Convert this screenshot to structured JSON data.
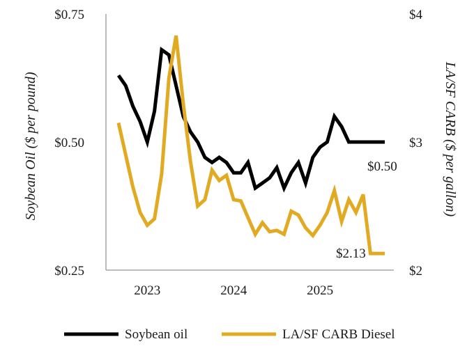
{
  "chart_data": {
    "type": "line",
    "title": "",
    "xlabel": "",
    "ylabel_left": "Soybean Oil ($ per pound)",
    "ylabel_right": "LA/SF CARB ($ per gallon)",
    "ylim_left": [
      0.25,
      0.75
    ],
    "ylim_right": [
      2,
      4
    ],
    "left_ticks": [
      {
        "value": 0.75,
        "label": "$0.75"
      },
      {
        "value": 0.5,
        "label": "$0.50"
      },
      {
        "value": 0.25,
        "label": "$0.25"
      }
    ],
    "right_ticks": [
      {
        "value": 4,
        "label": "$4"
      },
      {
        "value": 3,
        "label": "$3"
      },
      {
        "value": 2,
        "label": "$2"
      }
    ],
    "x_ticks": [
      {
        "index": 4,
        "label": "2023"
      },
      {
        "index": 16,
        "label": "2024"
      },
      {
        "index": 28,
        "label": "2025"
      }
    ],
    "x_count": 38,
    "series": [
      {
        "name": "Soybean oil",
        "axis": "left",
        "color": "#000000",
        "end_label": "$0.50",
        "values": [
          0.63,
          0.61,
          0.57,
          0.54,
          0.5,
          0.56,
          0.68,
          0.67,
          0.61,
          0.55,
          0.52,
          0.5,
          0.47,
          0.46,
          0.47,
          0.46,
          0.44,
          0.44,
          0.46,
          0.41,
          0.42,
          0.43,
          0.45,
          0.41,
          0.44,
          0.46,
          0.42,
          0.47,
          0.49,
          0.5,
          0.55,
          0.53,
          0.5,
          0.5,
          0.5,
          0.5,
          0.5,
          0.5
        ]
      },
      {
        "name": "LA/SF CARB Diesel",
        "axis": "right",
        "color": "#e2aa22",
        "end_label": "$2.13",
        "values": [
          3.15,
          2.9,
          2.65,
          2.45,
          2.35,
          2.4,
          2.75,
          3.5,
          3.83,
          3.3,
          2.85,
          2.5,
          2.55,
          2.78,
          2.7,
          2.74,
          2.55,
          2.54,
          2.41,
          2.28,
          2.37,
          2.3,
          2.31,
          2.28,
          2.46,
          2.43,
          2.33,
          2.27,
          2.35,
          2.45,
          2.62,
          2.38,
          2.55,
          2.45,
          2.59,
          2.13,
          2.13,
          2.13
        ]
      }
    ]
  }
}
